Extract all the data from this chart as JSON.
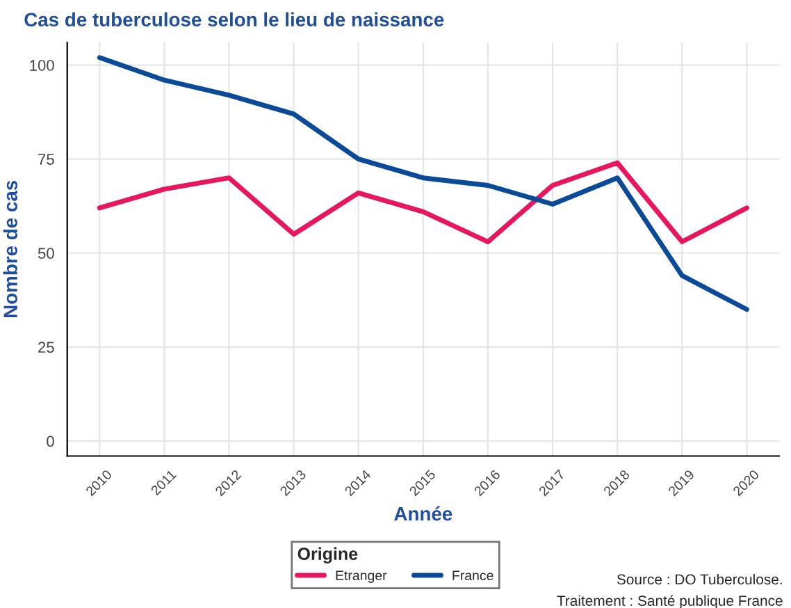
{
  "chart_data": {
    "type": "line",
    "title": "Cas de tuberculose selon le lieu de naissance",
    "xlabel": "Année",
    "ylabel": "Nombre de cas",
    "legend_title": "Origine",
    "x": [
      2010,
      2011,
      2012,
      2013,
      2014,
      2015,
      2016,
      2017,
      2018,
      2019,
      2020
    ],
    "series": [
      {
        "name": "Etranger",
        "color": "#e8175d",
        "values": [
          62,
          67,
          70,
          55,
          66,
          61,
          53,
          68,
          74,
          53,
          62
        ]
      },
      {
        "name": "France",
        "color": "#0b4a99",
        "values": [
          102,
          96,
          92,
          87,
          75,
          70,
          68,
          63,
          70,
          44,
          35
        ]
      }
    ],
    "xlim": [
      2009.5,
      2020.5
    ],
    "xticks": [
      2010,
      2011,
      2012,
      2013,
      2014,
      2015,
      2016,
      2017,
      2018,
      2019,
      2020
    ],
    "ylim": [
      -4,
      106
    ],
    "yticks": [
      0,
      25,
      50,
      75,
      100
    ],
    "grid": true,
    "legend": "bottom",
    "line_style": "solid",
    "marker": "none",
    "annotations": [
      "Source : DO Tuberculose.",
      "Traitement : Santé publique France"
    ]
  }
}
